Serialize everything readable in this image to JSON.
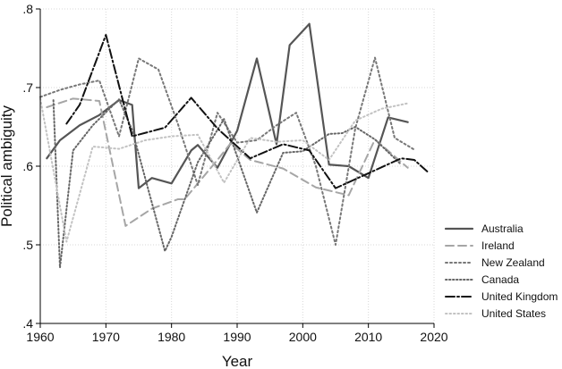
{
  "chart_data": {
    "type": "line",
    "xlabel": "Year",
    "ylabel": "Political ambiguity",
    "xlim": [
      1960,
      2020
    ],
    "ylim": [
      0.4,
      0.8
    ],
    "xticks": [
      1960,
      1970,
      1980,
      1990,
      2000,
      2010,
      2020
    ],
    "xtick_labels": [
      "1960",
      "1970",
      "1980",
      "1990",
      "2000",
      "2010",
      "2020"
    ],
    "yticks": [
      0.4,
      0.5,
      0.6,
      0.7,
      0.8
    ],
    "ytick_labels": [
      ".4",
      ".5",
      ".6",
      ".7",
      ".8"
    ],
    "grid": true,
    "legend_position": "right",
    "series": [
      {
        "name": "Australia",
        "color": "#555555",
        "dash": "solid",
        "x": [
          1961,
          1963,
          1966,
          1969,
          1972,
          1974,
          1975,
          1977,
          1980,
          1983,
          1984,
          1987,
          1990,
          1993,
          1996,
          1998,
          2001,
          2004,
          2007,
          2010,
          2013,
          2016
        ],
        "y": [
          0.61,
          0.633,
          0.652,
          0.665,
          0.684,
          0.678,
          0.572,
          0.585,
          0.578,
          0.62,
          0.627,
          0.598,
          0.645,
          0.737,
          0.628,
          0.754,
          0.781,
          0.602,
          0.6,
          0.585,
          0.662,
          0.656
        ]
      },
      {
        "name": "Ireland",
        "color": "#a6a6a6",
        "dash": "dash",
        "x": [
          1961,
          1965,
          1969,
          1973,
          1977,
          1981,
          1982,
          1987,
          1989,
          1992,
          1997,
          2002,
          2007,
          2011,
          2016
        ],
        "y": [
          0.675,
          0.686,
          0.683,
          0.524,
          0.546,
          0.558,
          0.558,
          0.608,
          0.629,
          0.608,
          0.597,
          0.573,
          0.563,
          0.634,
          0.598
        ]
      },
      {
        "name": "New Zealand",
        "color": "#777777",
        "dash": "dot",
        "x": [
          1960,
          1963,
          1966,
          1969,
          1972,
          1975,
          1978,
          1981,
          1984,
          1987,
          1990,
          1993,
          1996,
          1999,
          2002,
          2005,
          2008,
          2011,
          2014,
          2017
        ],
        "y": [
          0.688,
          0.697,
          0.704,
          0.709,
          0.638,
          0.737,
          0.723,
          0.653,
          0.576,
          0.668,
          0.63,
          0.633,
          0.652,
          0.668,
          0.6,
          0.5,
          0.648,
          0.738,
          0.636,
          0.621
        ]
      },
      {
        "name": "Canada",
        "color": "#666666",
        "dash": "dot-dense",
        "x": [
          1962,
          1963,
          1965,
          1968,
          1972,
          1974,
          1979,
          1980,
          1984,
          1988,
          1993,
          1997,
          2000,
          2004,
          2006,
          2008,
          2011,
          2015
        ],
        "y": [
          0.684,
          0.471,
          0.62,
          0.652,
          0.685,
          0.646,
          0.492,
          0.51,
          0.605,
          0.66,
          0.541,
          0.617,
          0.619,
          0.641,
          0.642,
          0.65,
          0.634,
          0.602
        ]
      },
      {
        "name": "United Kingdom",
        "color": "#111111",
        "dash": "dashdot",
        "x": [
          1964,
          1966,
          1970,
          1974,
          1979,
          1983,
          1987,
          1992,
          1997,
          2001,
          2005,
          2010,
          2015,
          2017,
          2019
        ],
        "y": [
          0.654,
          0.678,
          0.767,
          0.638,
          0.649,
          0.687,
          0.648,
          0.61,
          0.628,
          0.62,
          0.572,
          0.591,
          0.61,
          0.608,
          0.593
        ]
      },
      {
        "name": "United States",
        "color": "#c2c2c2",
        "dash": "dot-loose",
        "x": [
          1960,
          1964,
          1968,
          1972,
          1976,
          1980,
          1984,
          1988,
          1992,
          1996,
          2000,
          2004,
          2008,
          2012,
          2016
        ],
        "y": [
          0.686,
          0.504,
          0.625,
          0.622,
          0.633,
          0.638,
          0.64,
          0.579,
          0.636,
          0.631,
          0.633,
          0.608,
          0.658,
          0.673,
          0.68
        ]
      }
    ]
  }
}
